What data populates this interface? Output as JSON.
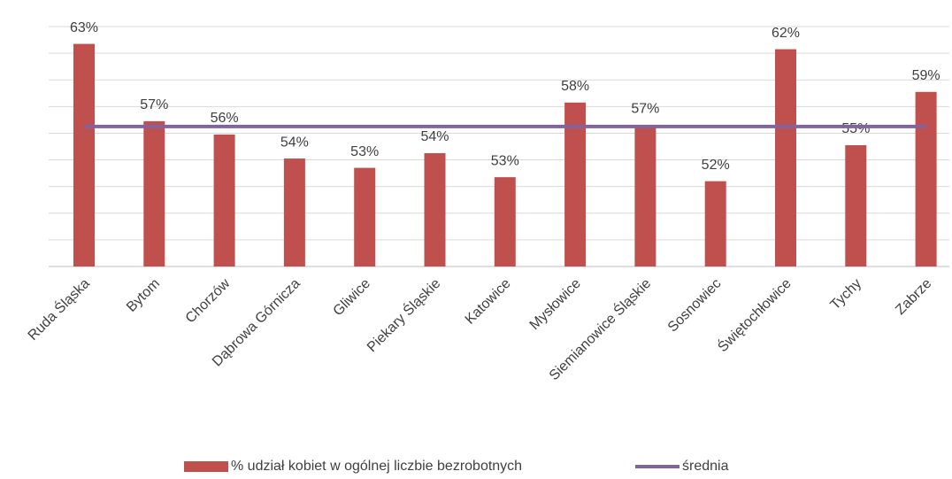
{
  "chart_data": {
    "type": "bar",
    "categories": [
      "Ruda Śląska",
      "Bytom",
      "Chorzów",
      "Dąbrowa Górnicza",
      "Gliwice",
      "Piekary Śląskie",
      "Katowice",
      "Mysłowice",
      "Siemianowice Śląskie",
      "Sosnowiec",
      "Świętochłowice",
      "Tychy",
      "Zabrze"
    ],
    "series": [
      {
        "name": "% udział kobiet w ogólnej liczbie bezrobotnych",
        "type": "bar",
        "color": "#c0504d",
        "values": [
          62.7,
          56.9,
          55.9,
          54.1,
          53.4,
          54.5,
          52.7,
          58.3,
          56.6,
          52.4,
          62.3,
          55.1,
          59.1
        ],
        "value_labels": [
          "63%",
          "57%",
          "56%",
          "54%",
          "53%",
          "54%",
          "53%",
          "58%",
          "57%",
          "52%",
          "62%",
          "55%",
          "59%"
        ]
      },
      {
        "name": "średnia",
        "type": "line",
        "color": "#8064a2",
        "values": [
          56.5,
          56.5,
          56.5,
          56.5,
          56.5,
          56.5,
          56.5,
          56.5,
          56.5,
          56.5,
          56.5,
          56.5,
          56.5
        ]
      }
    ],
    "ylim": [
      46,
      64
    ],
    "yticks": [
      46,
      48,
      50,
      52,
      54,
      56,
      58,
      60,
      62,
      64
    ],
    "ytick_labels": false,
    "grid": true,
    "legend": "bottom"
  }
}
